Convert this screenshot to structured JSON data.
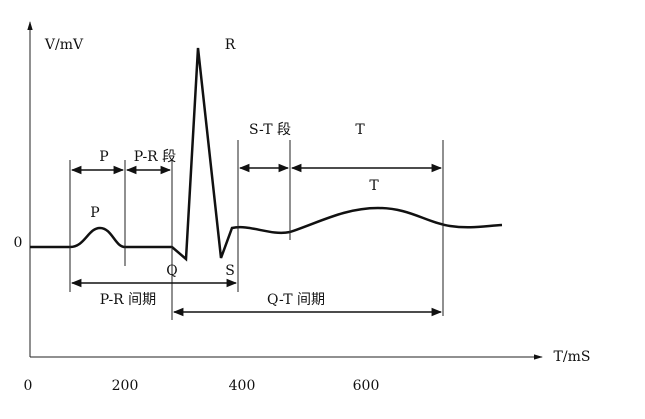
{
  "axes": {
    "y_label": "V/mV",
    "x_label": "T/mS",
    "origin_label": "0",
    "x_ticks": [
      "0",
      "200",
      "400",
      "600"
    ]
  },
  "waves": {
    "p": "P",
    "q": "Q",
    "r": "R",
    "s": "S",
    "t": "T"
  },
  "intervals": {
    "p": "P",
    "pr_segment": "P-R 段",
    "st_segment": "S-T 段",
    "t": "T",
    "pr_interval": "P-R 间期",
    "qt_interval": "Q-T 间期"
  }
}
